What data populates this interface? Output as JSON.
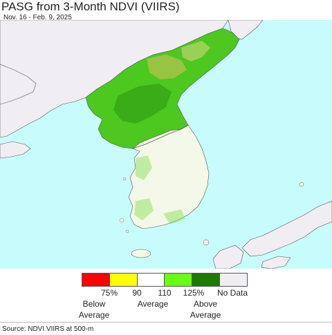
{
  "header": {
    "title": "PASG from 3-Month NDVI (VIIRS)",
    "subtitle": "Nov. 16 - Feb. 9, 2025"
  },
  "legend": {
    "colors": [
      "#ff0000",
      "#ffff00",
      "#ffffff",
      "#66ff11",
      "#1e7a00",
      "#f0eef2"
    ],
    "ticks": [
      "75%",
      "90",
      "110",
      "125%",
      "No Data"
    ],
    "categories": {
      "below": "Below\nAverage",
      "average": "Average",
      "above": "Above\nAverage"
    }
  },
  "map_colors": {
    "water": "#c8fcfc",
    "no_data_land": "#f0eef2",
    "north_korea": "#4cc81e",
    "south_korea": "#f4f8e8",
    "border": "#555555"
  },
  "footer": {
    "source": "Source: NDVI VIIRS at 500-m"
  }
}
